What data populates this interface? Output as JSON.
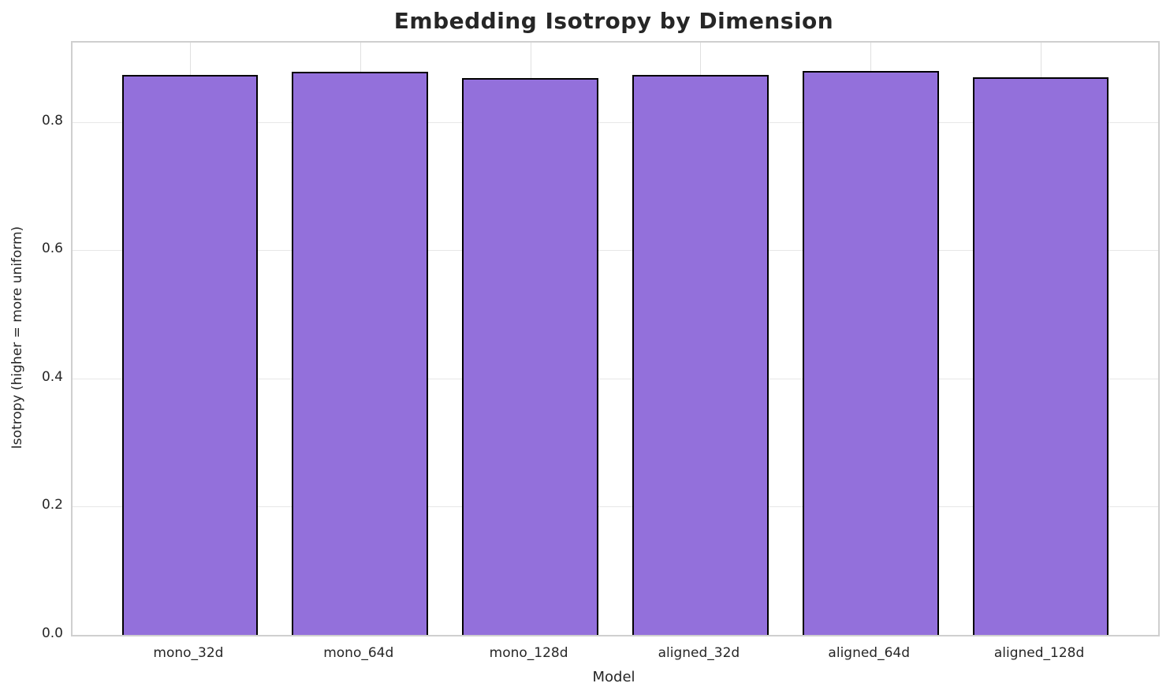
{
  "chart_data": {
    "type": "bar",
    "title": "Embedding Isotropy by Dimension",
    "xlabel": "Model",
    "ylabel": "Isotropy (higher = more uniform)",
    "categories": [
      "mono_32d",
      "mono_64d",
      "mono_128d",
      "aligned_32d",
      "aligned_64d",
      "aligned_128d"
    ],
    "values": [
      0.873,
      0.879,
      0.869,
      0.873,
      0.88,
      0.87
    ],
    "ytick_labels": [
      "0.0",
      "0.2",
      "0.4",
      "0.6",
      "0.8"
    ],
    "yticks": [
      0.0,
      0.2,
      0.4,
      0.6,
      0.8
    ],
    "ylim": [
      0,
      0.924
    ],
    "grid": true,
    "legend": "none",
    "bar_color": "#9370DB",
    "bar_edge_color": "#000000",
    "grid_color": "#e7e7e7",
    "spine_color": "#cfcfcf",
    "text_color": "#262626",
    "background_color": "#ffffff"
  }
}
